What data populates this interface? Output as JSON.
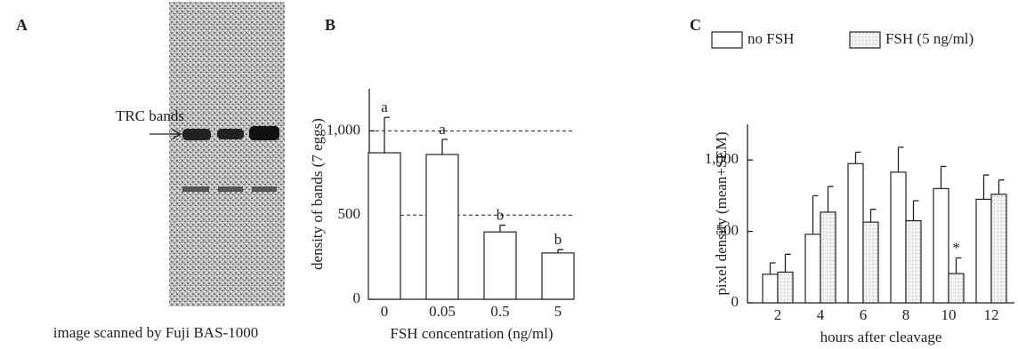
{
  "panel_a": {
    "label": "A",
    "annotation": "TRC bands",
    "caption": "image scanned by Fuji BAS-1000"
  },
  "chart_data": [
    {
      "type": "bar",
      "label": "B",
      "y_label": "density of bands (7 eggs)",
      "x_label": "FSH concentration (ng/ml)",
      "categories": [
        "0",
        "0.05",
        "0.5",
        "5"
      ],
      "series": [
        {
          "color": "#ffffff",
          "values": [
            870,
            860,
            400,
            275
          ],
          "errors": [
            210,
            90,
            40,
            20
          ],
          "annotations": [
            "a",
            "a",
            "b",
            "b"
          ]
        }
      ],
      "ylim": [
        0,
        1250
      ],
      "yticks": [
        0,
        500,
        {
          "value": 1000,
          "label": "1,000"
        }
      ],
      "grid": "dashed"
    },
    {
      "type": "bar",
      "label": "C",
      "y_label": "pixel density (mean+SEM)",
      "x_label": "hours after cleavage",
      "categories": [
        "2",
        "4",
        "6",
        "8",
        "10",
        "12"
      ],
      "series": [
        {
          "name": "no FSH",
          "color": "#ffffff",
          "values": [
            200,
            480,
            975,
            915,
            800,
            725
          ],
          "errors": [
            80,
            270,
            80,
            175,
            155,
            170
          ]
        },
        {
          "name": "FSH (5 ng/ml)",
          "color": "#e4e4e4",
          "values": [
            215,
            635,
            565,
            575,
            205,
            760
          ],
          "errors": [
            125,
            180,
            90,
            140,
            110,
            100
          ],
          "annotations": [
            null,
            null,
            null,
            null,
            "*",
            null
          ]
        }
      ],
      "ylim": [
        0,
        1250
      ],
      "yticks": [
        0,
        500,
        {
          "value": 1000,
          "label": "1,000"
        }
      ],
      "grid": false
    }
  ]
}
